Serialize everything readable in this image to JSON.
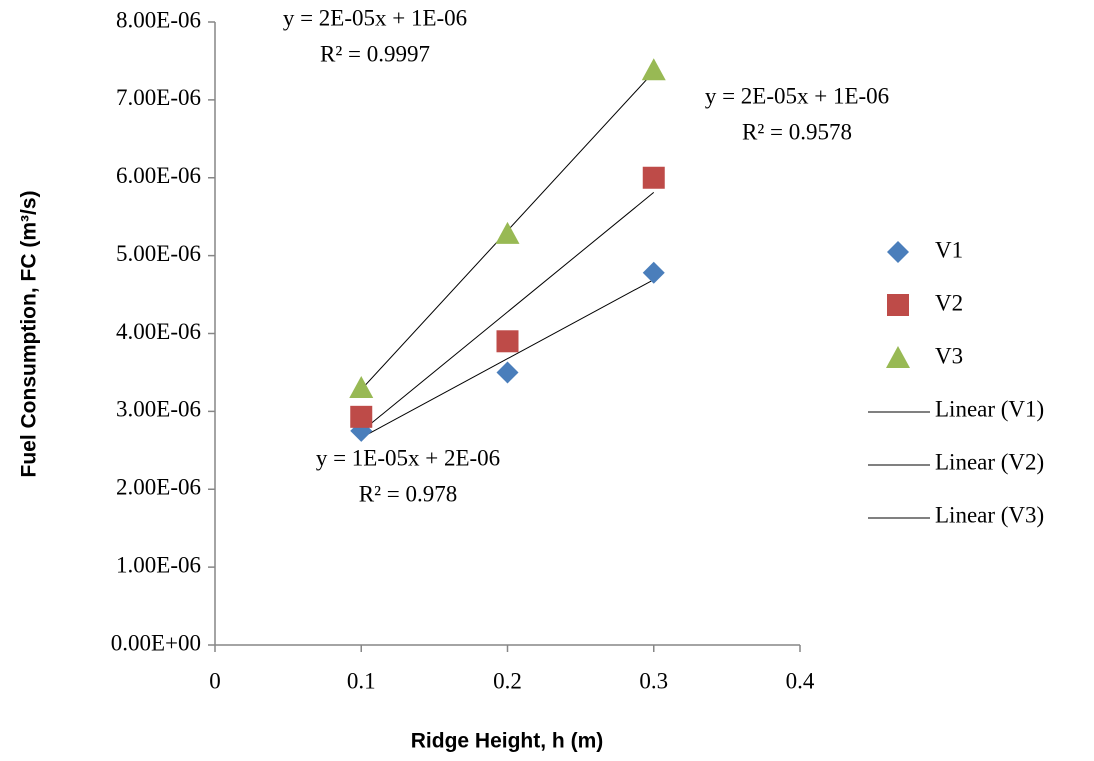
{
  "chart_data": {
    "type": "scatter",
    "x_label": "Ridge Height, h (m)",
    "y_label": "Fuel Consumption, FC (m³/s)",
    "xlim": [
      0,
      0.4
    ],
    "xticks": [
      0,
      0.1,
      0.2,
      0.3,
      0.4
    ],
    "ylim": [
      0,
      8e-06
    ],
    "yticks": [
      {
        "value": 0,
        "label": "0.00E+00"
      },
      {
        "value": 1e-06,
        "label": "1.00E-06"
      },
      {
        "value": 2e-06,
        "label": "2.00E-06"
      },
      {
        "value": 3e-06,
        "label": "3.00E-06"
      },
      {
        "value": 4e-06,
        "label": "4.00E-06"
      },
      {
        "value": 5e-06,
        "label": "5.00E-06"
      },
      {
        "value": 6e-06,
        "label": "6.00E-06"
      },
      {
        "value": 7e-06,
        "label": "7.00E-06"
      },
      {
        "value": 8e-06,
        "label": "8.00E-06"
      }
    ],
    "grid": false,
    "legend": "right",
    "series": [
      {
        "name": "V1",
        "color": "#4a7ebb",
        "marker": "diamond",
        "trendline_name": "Linear (V1)",
        "x": [
          0.1,
          0.2,
          0.3
        ],
        "values": [
          2.75e-06,
          3.5e-06,
          4.78e-06
        ]
      },
      {
        "name": "V2",
        "color": "#be4b48",
        "marker": "square",
        "trendline_name": "Linear (V2)",
        "x": [
          0.1,
          0.2,
          0.3
        ],
        "values": [
          2.93e-06,
          3.9e-06,
          6e-06
        ]
      },
      {
        "name": "V3",
        "color": "#98b954",
        "marker": "triangle",
        "trendline_name": "Linear (V3)",
        "x": [
          0.1,
          0.2,
          0.3
        ],
        "values": [
          3.3e-06,
          5.28e-06,
          7.38e-06
        ]
      }
    ],
    "annotations": [
      [
        "y = 2E-05x + 1E-06",
        "R² = 0.9997"
      ],
      [
        "y = 2E-05x + 1E-06",
        "R² = 0.9578"
      ],
      [
        "y = 1E-05x + 2E-06",
        "R² = 0.978"
      ]
    ]
  }
}
